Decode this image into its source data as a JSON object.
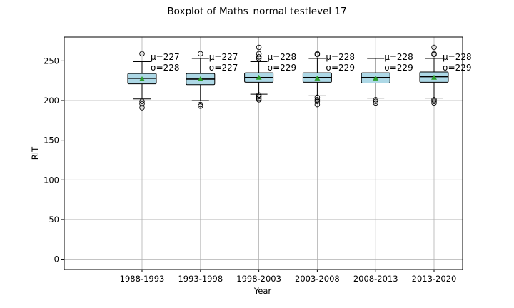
{
  "chart_data": {
    "type": "boxplot",
    "title": "Boxplot of Maths_normal testlevel 17",
    "xlabel": "Year",
    "ylabel": "RIT",
    "ylim": [
      -13,
      280
    ],
    "yticks": [
      0,
      50,
      100,
      150,
      200,
      250
    ],
    "grid": true,
    "colors": {
      "box_fill": "#add8e6",
      "median": "#000000",
      "mean_marker": "#2ca02c",
      "whisker": "#000000"
    },
    "categories": [
      "1988-1993",
      "1993-1998",
      "1998-2003",
      "2003-2008",
      "2008-2013",
      "2013-2020"
    ],
    "boxes": [
      {
        "q1": 221,
        "median": 228,
        "q3": 234,
        "whislo": 202,
        "whishi": 249,
        "mean": 227,
        "fliers": [
          259,
          199,
          196,
          191
        ],
        "mean_label": "μ=227",
        "sigma_label": "σ=228"
      },
      {
        "q1": 220,
        "median": 227,
        "q3": 234,
        "whislo": 200,
        "whishi": 253,
        "mean": 227,
        "fliers": [
          259,
          195,
          193
        ],
        "mean_label": "μ=227",
        "sigma_label": "σ=227"
      },
      {
        "q1": 223,
        "median": 229,
        "q3": 235,
        "whislo": 208,
        "whishi": 249,
        "mean": 229,
        "fliers": [
          267,
          259,
          255,
          253,
          207,
          205,
          203,
          201
        ],
        "mean_label": "μ=228",
        "sigma_label": "σ=229"
      },
      {
        "q1": 223,
        "median": 229,
        "q3": 235,
        "whislo": 206,
        "whishi": 253,
        "mean": 228,
        "fliers": [
          259,
          258,
          204,
          201,
          199,
          195
        ],
        "mean_label": "μ=228",
        "sigma_label": "σ=229"
      },
      {
        "q1": 222,
        "median": 229,
        "q3": 235,
        "whislo": 203,
        "whishi": 253,
        "mean": 228,
        "fliers": [
          201,
          199,
          197
        ],
        "mean_label": "μ=228",
        "sigma_label": "σ=229"
      },
      {
        "q1": 223,
        "median": 230,
        "q3": 236,
        "whislo": 203,
        "whishi": 253,
        "mean": 229,
        "fliers": [
          267,
          259,
          258,
          201,
          199,
          197
        ],
        "mean_label": "μ=228",
        "sigma_label": "σ=229"
      }
    ]
  }
}
